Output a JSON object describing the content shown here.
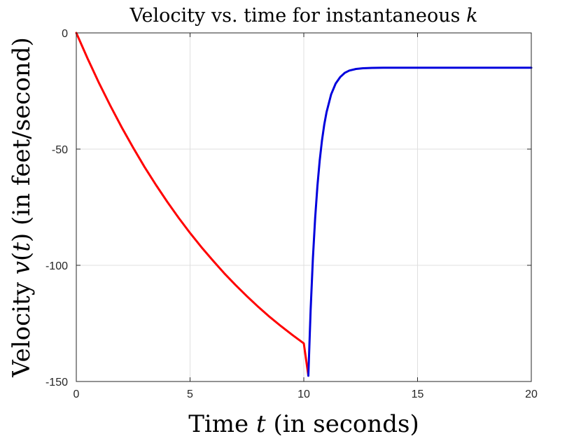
{
  "chart_data": {
    "type": "line",
    "title": {
      "text": "Velocity vs. time for instantaneous ",
      "var": "k"
    },
    "xlabel": {
      "pre": "Time ",
      "var": "t",
      "post": " (in seconds)"
    },
    "ylabel": {
      "pre": "Velocity ",
      "var1": "v",
      "paren_open": "(",
      "var2": "t",
      "paren_close": ")",
      "post": " (in feet/second)"
    },
    "xlim": [
      0,
      20
    ],
    "ylim": [
      -150,
      0
    ],
    "xticks": [
      0,
      5,
      10,
      15,
      20
    ],
    "xtick_labels": [
      "0",
      "5",
      "10",
      "15",
      "20"
    ],
    "yticks": [
      0,
      -50,
      -100,
      -150
    ],
    "ytick_labels": [
      "0",
      "-50",
      "-100",
      "-150"
    ],
    "grid": true,
    "series": [
      {
        "color": "#ff0000",
        "x": [
          0,
          0.5,
          1,
          1.5,
          2,
          2.5,
          3,
          3.5,
          4,
          4.5,
          5,
          5.5,
          6,
          6.5,
          7,
          7.5,
          8,
          8.5,
          9,
          9.5,
          10,
          10.2
        ],
        "y": [
          0,
          -11.1,
          -21.6,
          -31.4,
          -40.7,
          -49.4,
          -57.7,
          -65.4,
          -72.7,
          -79.6,
          -86.1,
          -92.2,
          -97.9,
          -103.4,
          -108.5,
          -113.3,
          -117.9,
          -122.2,
          -126.2,
          -130.0,
          -133.6,
          -147.5
        ]
      },
      {
        "color": "#0000dd",
        "x": [
          10.2,
          10.3,
          10.4,
          10.5,
          10.6,
          10.7,
          10.8,
          10.9,
          11.0,
          11.2,
          11.4,
          11.6,
          11.8,
          12.0,
          12.3,
          12.6,
          13.0,
          13.5,
          14.0,
          15.0,
          16.0,
          18.0,
          20.0
        ],
        "y": [
          -147.5,
          -119.3,
          -97.0,
          -79.5,
          -65.7,
          -54.8,
          -46.2,
          -39.4,
          -34.1,
          -26.5,
          -21.8,
          -19.0,
          -17.2,
          -16.2,
          -15.5,
          -15.2,
          -15.05,
          -15.0,
          -15.0,
          -15.0,
          -15.0,
          -15.0,
          -15.0
        ]
      }
    ]
  }
}
